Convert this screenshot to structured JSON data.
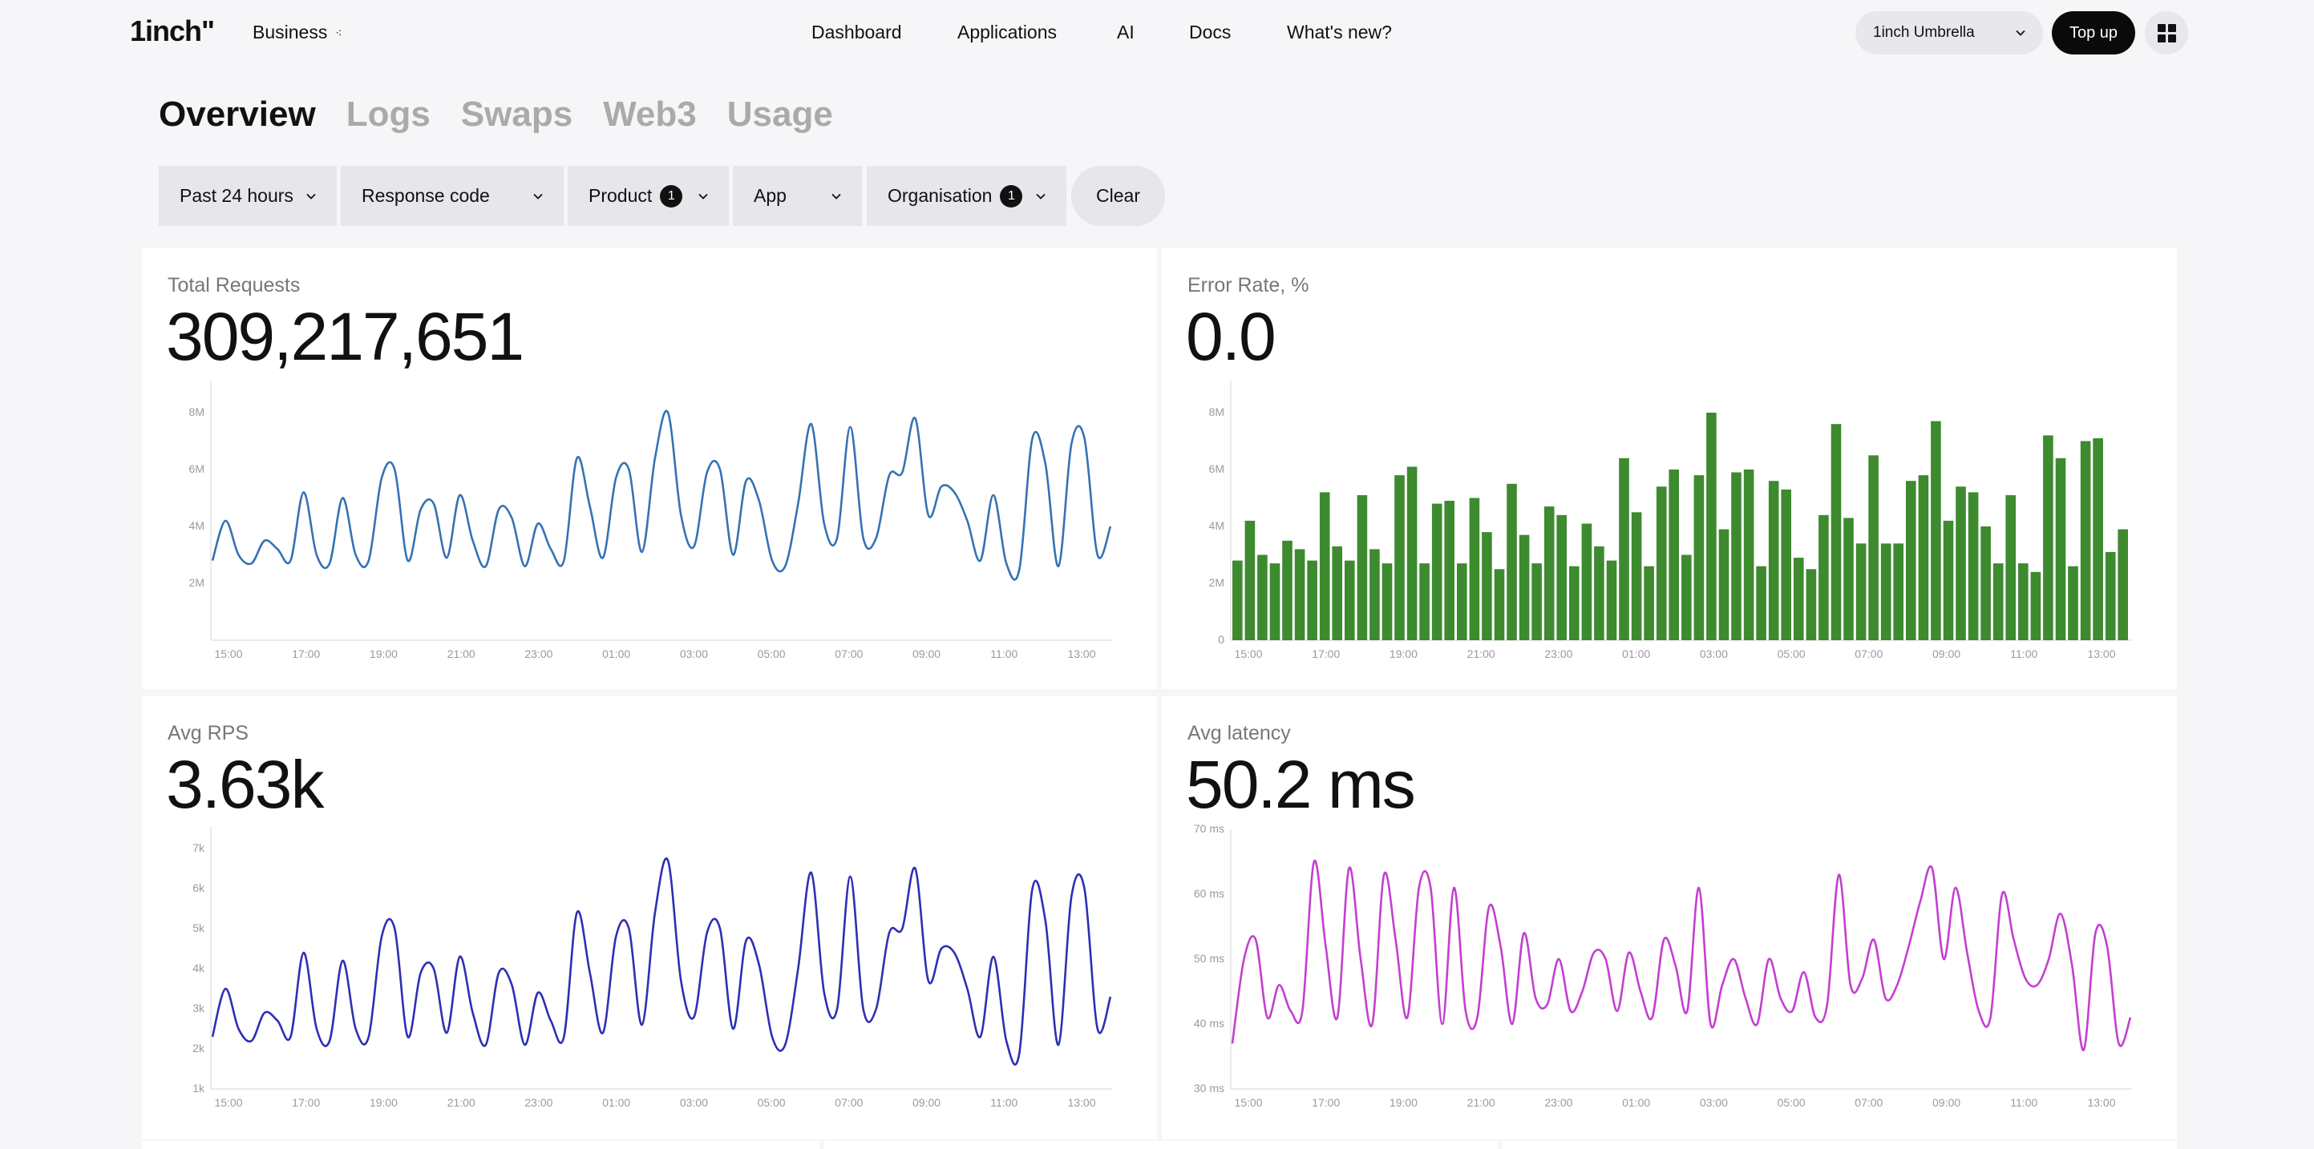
{
  "header": {
    "logo": "1inch\"",
    "product": "Business",
    "nav": [
      "Dashboard",
      "Applications",
      "AI",
      "Docs",
      "What's new?"
    ],
    "org_select": "1inch Umbrella",
    "topup_label": "Top up"
  },
  "tabs": [
    "Overview",
    "Logs",
    "Swaps",
    "Web3",
    "Usage"
  ],
  "active_tab": "Overview",
  "filters": [
    {
      "label": "Past 24 hours",
      "badge": ""
    },
    {
      "label": "Response code",
      "badge": ""
    },
    {
      "label": "Product",
      "badge": "1"
    },
    {
      "label": "App",
      "badge": ""
    },
    {
      "label": "Organisation",
      "badge": "1"
    }
  ],
  "clear_label": "Clear",
  "colors": {
    "requests": "#3572b5",
    "errors": "#3d8a2f",
    "rps": "#2e2fb4",
    "latency": "#c33fd1"
  },
  "chart_data": [
    {
      "type": "line",
      "title": "Total Requests",
      "value": "309,217,651",
      "x_ticks": [
        "15:00",
        "17:00",
        "19:00",
        "21:00",
        "23:00",
        "01:00",
        "03:00",
        "05:00",
        "07:00",
        "09:00",
        "11:00",
        "13:00"
      ],
      "y_ticks": [
        "2M",
        "4M",
        "6M",
        "8M"
      ],
      "ylim": [
        0,
        8
      ],
      "series": [
        {
          "values": [
            2.8,
            4.2,
            3.0,
            2.7,
            3.5,
            3.2,
            2.8,
            5.2,
            3.0,
            2.7,
            5.0,
            3.0,
            2.8,
            5.7,
            6.0,
            2.8,
            4.6,
            4.8,
            2.9,
            5.1,
            3.5,
            2.6,
            4.6,
            4.3,
            2.6,
            4.1,
            3.2,
            2.8,
            6.4,
            4.7,
            2.9,
            5.7,
            6.0,
            3.1,
            6.4,
            8.0,
            4.4,
            3.3,
            5.9,
            6.0,
            3.0,
            5.6,
            4.9,
            2.8,
            2.6,
            4.8,
            7.6,
            4.1,
            3.6,
            7.5,
            3.6,
            3.6,
            5.8,
            5.9,
            7.8,
            4.4,
            5.4,
            5.2,
            4.2,
            2.8,
            5.1,
            2.7,
            2.5,
            7.1,
            6.2,
            2.6,
            6.9,
            7.1,
            3.0,
            4.0
          ]
        }
      ]
    },
    {
      "type": "bar",
      "title": "Error Rate, %",
      "value": "0.0",
      "x_ticks": [
        "15:00",
        "17:00",
        "19:00",
        "21:00",
        "23:00",
        "01:00",
        "03:00",
        "05:00",
        "07:00",
        "09:00",
        "11:00",
        "13:00"
      ],
      "y_ticks": [
        "0",
        "2M",
        "4M",
        "6M",
        "8M"
      ],
      "ylim": [
        0,
        8
      ],
      "series": [
        {
          "values": [
            2.8,
            4.2,
            3.0,
            2.7,
            3.5,
            3.2,
            2.8,
            5.2,
            3.3,
            2.8,
            5.1,
            3.2,
            2.7,
            5.8,
            6.1,
            2.7,
            4.8,
            4.9,
            2.7,
            5.0,
            3.8,
            2.5,
            5.5,
            3.7,
            2.7,
            4.7,
            4.4,
            2.6,
            4.1,
            3.3,
            2.8,
            6.4,
            4.5,
            2.6,
            5.4,
            6.0,
            3.0,
            5.8,
            8.0,
            3.9,
            5.9,
            6.0,
            2.6,
            5.6,
            5.3,
            2.9,
            2.5,
            4.4,
            7.6,
            4.3,
            3.4,
            6.5,
            3.4,
            3.4,
            5.6,
            5.8,
            7.7,
            4.2,
            5.4,
            5.2,
            4.0,
            2.7,
            5.1,
            2.7,
            2.4,
            7.2,
            6.4,
            2.6,
            7.0,
            7.1,
            3.1,
            3.9
          ]
        }
      ]
    },
    {
      "type": "line",
      "title": "Avg RPS",
      "value": "3.63k",
      "x_ticks": [
        "15:00",
        "17:00",
        "19:00",
        "21:00",
        "23:00",
        "01:00",
        "03:00",
        "05:00",
        "07:00",
        "09:00",
        "11:00",
        "13:00"
      ],
      "y_ticks": [
        "1k",
        "2k",
        "3k",
        "4k",
        "5k",
        "6k",
        "7k"
      ],
      "ylim": [
        1,
        7
      ],
      "series": [
        {
          "values": [
            2.3,
            3.5,
            2.5,
            2.2,
            2.9,
            2.7,
            2.3,
            4.4,
            2.5,
            2.2,
            4.2,
            2.5,
            2.3,
            4.8,
            5.0,
            2.3,
            3.9,
            4.0,
            2.4,
            4.3,
            2.9,
            2.1,
            3.9,
            3.6,
            2.1,
            3.4,
            2.7,
            2.3,
            5.4,
            3.9,
            2.4,
            4.8,
            5.0,
            2.6,
            5.4,
            6.7,
            3.7,
            2.8,
            4.9,
            5.0,
            2.5,
            4.7,
            4.1,
            2.3,
            2.1,
            4.0,
            6.4,
            3.4,
            3.0,
            6.3,
            3.0,
            3.0,
            4.9,
            5.0,
            6.5,
            3.7,
            4.5,
            4.4,
            3.5,
            2.3,
            4.3,
            2.2,
            1.9,
            6.0,
            5.2,
            2.1,
            5.8,
            6.0,
            2.5,
            3.3
          ]
        }
      ]
    },
    {
      "type": "line",
      "title": "Avg latency",
      "value": "50.2 ms",
      "x_ticks": [
        "15:00",
        "17:00",
        "19:00",
        "21:00",
        "23:00",
        "01:00",
        "03:00",
        "05:00",
        "07:00",
        "09:00",
        "11:00",
        "13:00"
      ],
      "y_ticks": [
        "30 ms",
        "40 ms",
        "50 ms",
        "60 ms",
        "70 ms"
      ],
      "ylim": [
        30,
        70
      ],
      "series": [
        {
          "values": [
            37,
            50,
            53,
            41,
            46,
            42,
            42,
            65,
            52,
            41,
            64,
            50,
            40,
            63,
            53,
            41,
            61,
            61,
            40,
            61,
            42,
            41,
            58,
            52,
            40,
            54,
            44,
            43,
            50,
            42,
            45,
            51,
            50,
            42,
            51,
            45,
            41,
            53,
            49,
            42,
            61,
            40,
            46,
            50,
            44,
            40,
            50,
            44,
            42,
            48,
            41,
            43,
            63,
            46,
            47,
            53,
            44,
            46,
            52,
            59,
            64,
            50,
            61,
            51,
            42,
            41,
            60,
            53,
            47,
            46,
            50,
            57,
            49,
            36,
            54,
            52,
            37,
            41
          ]
        }
      ]
    }
  ]
}
